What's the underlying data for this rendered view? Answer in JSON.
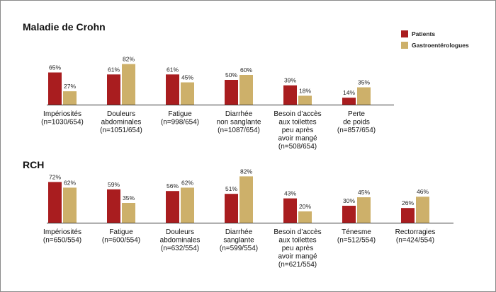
{
  "colors": {
    "patients": "#a91d1f",
    "gastro": "#cdb06a",
    "axis": "#333333"
  },
  "chart_data": [
    {
      "type": "bar",
      "title": "Maladie de Crohn",
      "series_names": [
        "Patients",
        "Gastroentérologues"
      ],
      "categories": [
        [
          "Impériosités",
          "(n=1030/654)"
        ],
        [
          "Douleurs",
          "abdominales",
          "(n=1051/654)"
        ],
        [
          "Fatigue",
          "(n=998/654)"
        ],
        [
          "Diarrhée",
          "non sanglante",
          "(n=1087/654)"
        ],
        [
          "Besoin d’accès",
          "aux toilettes",
          "peu après",
          "avoir mangé",
          "(n=508/654)"
        ],
        [
          "Perte",
          "de poids",
          "(n=857/654)"
        ]
      ],
      "series": [
        {
          "values": [
            65,
            61,
            61,
            50,
            39,
            14
          ],
          "labels": [
            "65%",
            "61%",
            "61%",
            "50%",
            "39%",
            "14%"
          ]
        },
        {
          "values": [
            27,
            82,
            45,
            60,
            18,
            35
          ],
          "labels": [
            "27%",
            "82%",
            "45%",
            "60%",
            "18%",
            "35%"
          ]
        }
      ],
      "ylim": [
        0,
        100
      ]
    },
    {
      "type": "bar",
      "title": "RCH",
      "series_names": [
        "Patients",
        "Gastroentérologues"
      ],
      "categories": [
        [
          "Impériosités",
          "(n=650/554)"
        ],
        [
          "Fatigue",
          "(n=600/554)"
        ],
        [
          "Douleurs",
          "abdominales",
          "(n=632/554)"
        ],
        [
          "Diarrhée",
          "sanglante",
          "(n=599/554)"
        ],
        [
          "Besoin d’accès",
          "aux toilettes",
          "peu après",
          "avoir mangé",
          "(n=621/554)"
        ],
        [
          "Ténesme",
          "(n=512/554)"
        ],
        [
          "Rectorragies",
          "(n=424/554)"
        ]
      ],
      "series": [
        {
          "values": [
            72,
            59,
            56,
            51,
            43,
            30,
            26
          ],
          "labels": [
            "72%",
            "59%",
            "56%",
            "51%",
            "43%",
            "30%",
            "26%"
          ]
        },
        {
          "values": [
            62,
            35,
            62,
            82,
            20,
            45,
            46
          ],
          "labels": [
            "62%",
            "35%",
            "62%",
            "82%",
            "20%",
            "45%",
            "46%"
          ]
        }
      ],
      "ylim": [
        0,
        100
      ]
    }
  ],
  "legend": [
    {
      "label": "Patients",
      "color_key": "patients"
    },
    {
      "label": "Gastroentérologues",
      "color_key": "gastro"
    }
  ]
}
